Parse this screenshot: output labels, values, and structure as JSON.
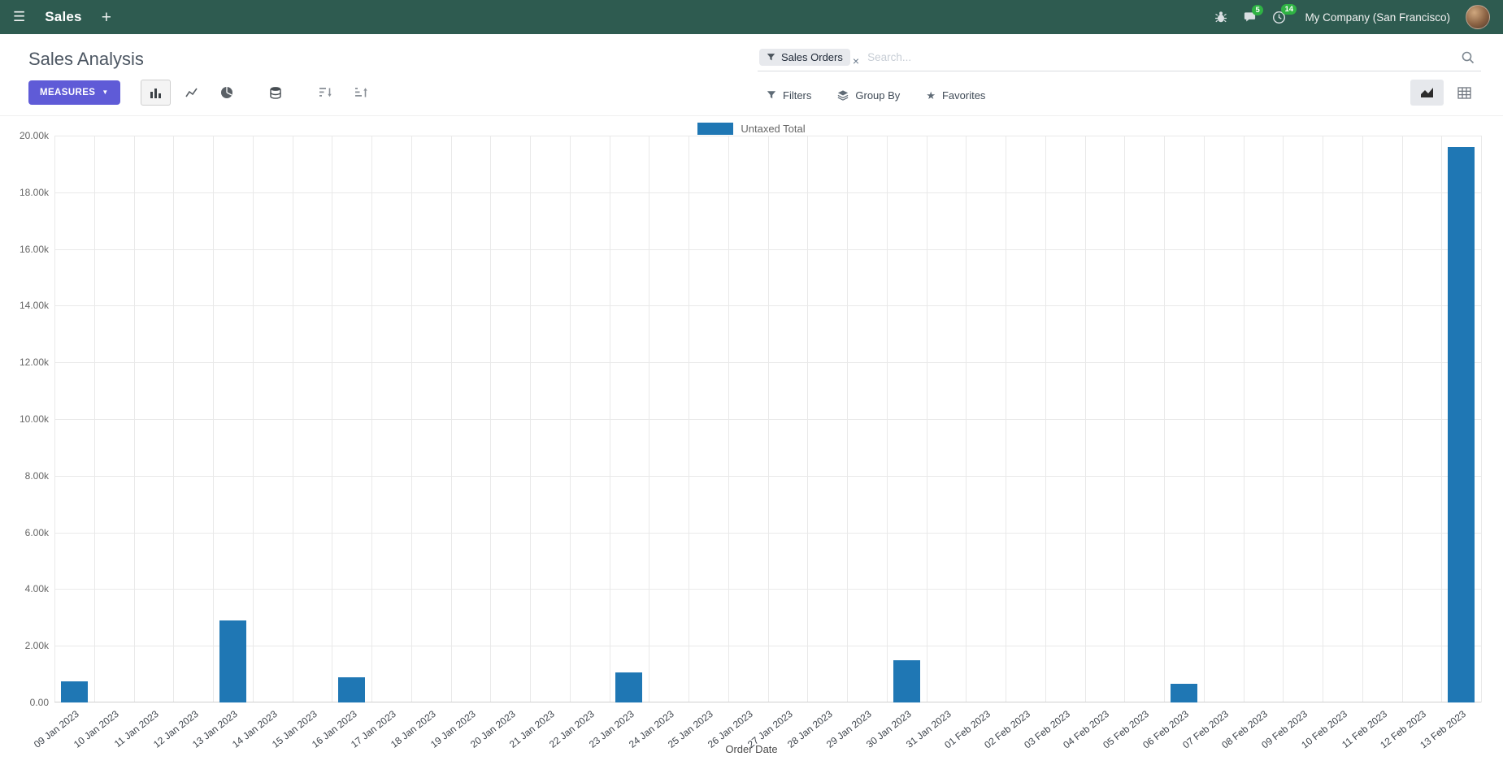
{
  "navbar": {
    "app_name": "Sales",
    "company": "My Company (San Francisco)",
    "messages_badge": "5",
    "activities_badge": "14"
  },
  "icons": {
    "hamburger": "☰",
    "plus": "+",
    "caret_down": "▼",
    "star": "★",
    "facet_close": "×"
  },
  "control_panel": {
    "title": "Sales Analysis",
    "measures_label": "MEASURES",
    "filters_label": "Filters",
    "group_by_label": "Group By",
    "favorites_label": "Favorites",
    "search": {
      "facet_label": "Sales Orders",
      "placeholder": "Search..."
    }
  },
  "chart_data": {
    "type": "bar",
    "title": "",
    "xlabel": "Order Date",
    "ylabel": "",
    "ylim": [
      0,
      20000
    ],
    "ytick_step": 2000,
    "ytick_labels": [
      "0.00",
      "2.00k",
      "4.00k",
      "6.00k",
      "8.00k",
      "10.00k",
      "12.00k",
      "14.00k",
      "16.00k",
      "18.00k",
      "20.00k"
    ],
    "grid": true,
    "legend_position": "top",
    "categories": [
      "09 Jan 2023",
      "10 Jan 2023",
      "11 Jan 2023",
      "12 Jan 2023",
      "13 Jan 2023",
      "14 Jan 2023",
      "15 Jan 2023",
      "16 Jan 2023",
      "17 Jan 2023",
      "18 Jan 2023",
      "19 Jan 2023",
      "20 Jan 2023",
      "21 Jan 2023",
      "22 Jan 2023",
      "23 Jan 2023",
      "24 Jan 2023",
      "25 Jan 2023",
      "26 Jan 2023",
      "27 Jan 2023",
      "28 Jan 2023",
      "29 Jan 2023",
      "30 Jan 2023",
      "31 Jan 2023",
      "01 Feb 2023",
      "02 Feb 2023",
      "03 Feb 2023",
      "04 Feb 2023",
      "05 Feb 2023",
      "06 Feb 2023",
      "07 Feb 2023",
      "08 Feb 2023",
      "09 Feb 2023",
      "10 Feb 2023",
      "11 Feb 2023",
      "12 Feb 2023",
      "13 Feb 2023"
    ],
    "series": [
      {
        "name": "Untaxed Total",
        "color": "#1f77b4",
        "values": [
          750,
          0,
          0,
          0,
          2900,
          0,
          0,
          900,
          0,
          0,
          0,
          0,
          0,
          0,
          1050,
          0,
          0,
          0,
          0,
          0,
          0,
          1500,
          0,
          0,
          0,
          0,
          0,
          0,
          650,
          0,
          0,
          0,
          0,
          0,
          0,
          19600
        ]
      }
    ]
  },
  "colors": {
    "navbar_bg": "#2e5b50",
    "primary_button": "#5f5bd7",
    "bar": "#1f77b4",
    "badge": "#2fb344"
  }
}
